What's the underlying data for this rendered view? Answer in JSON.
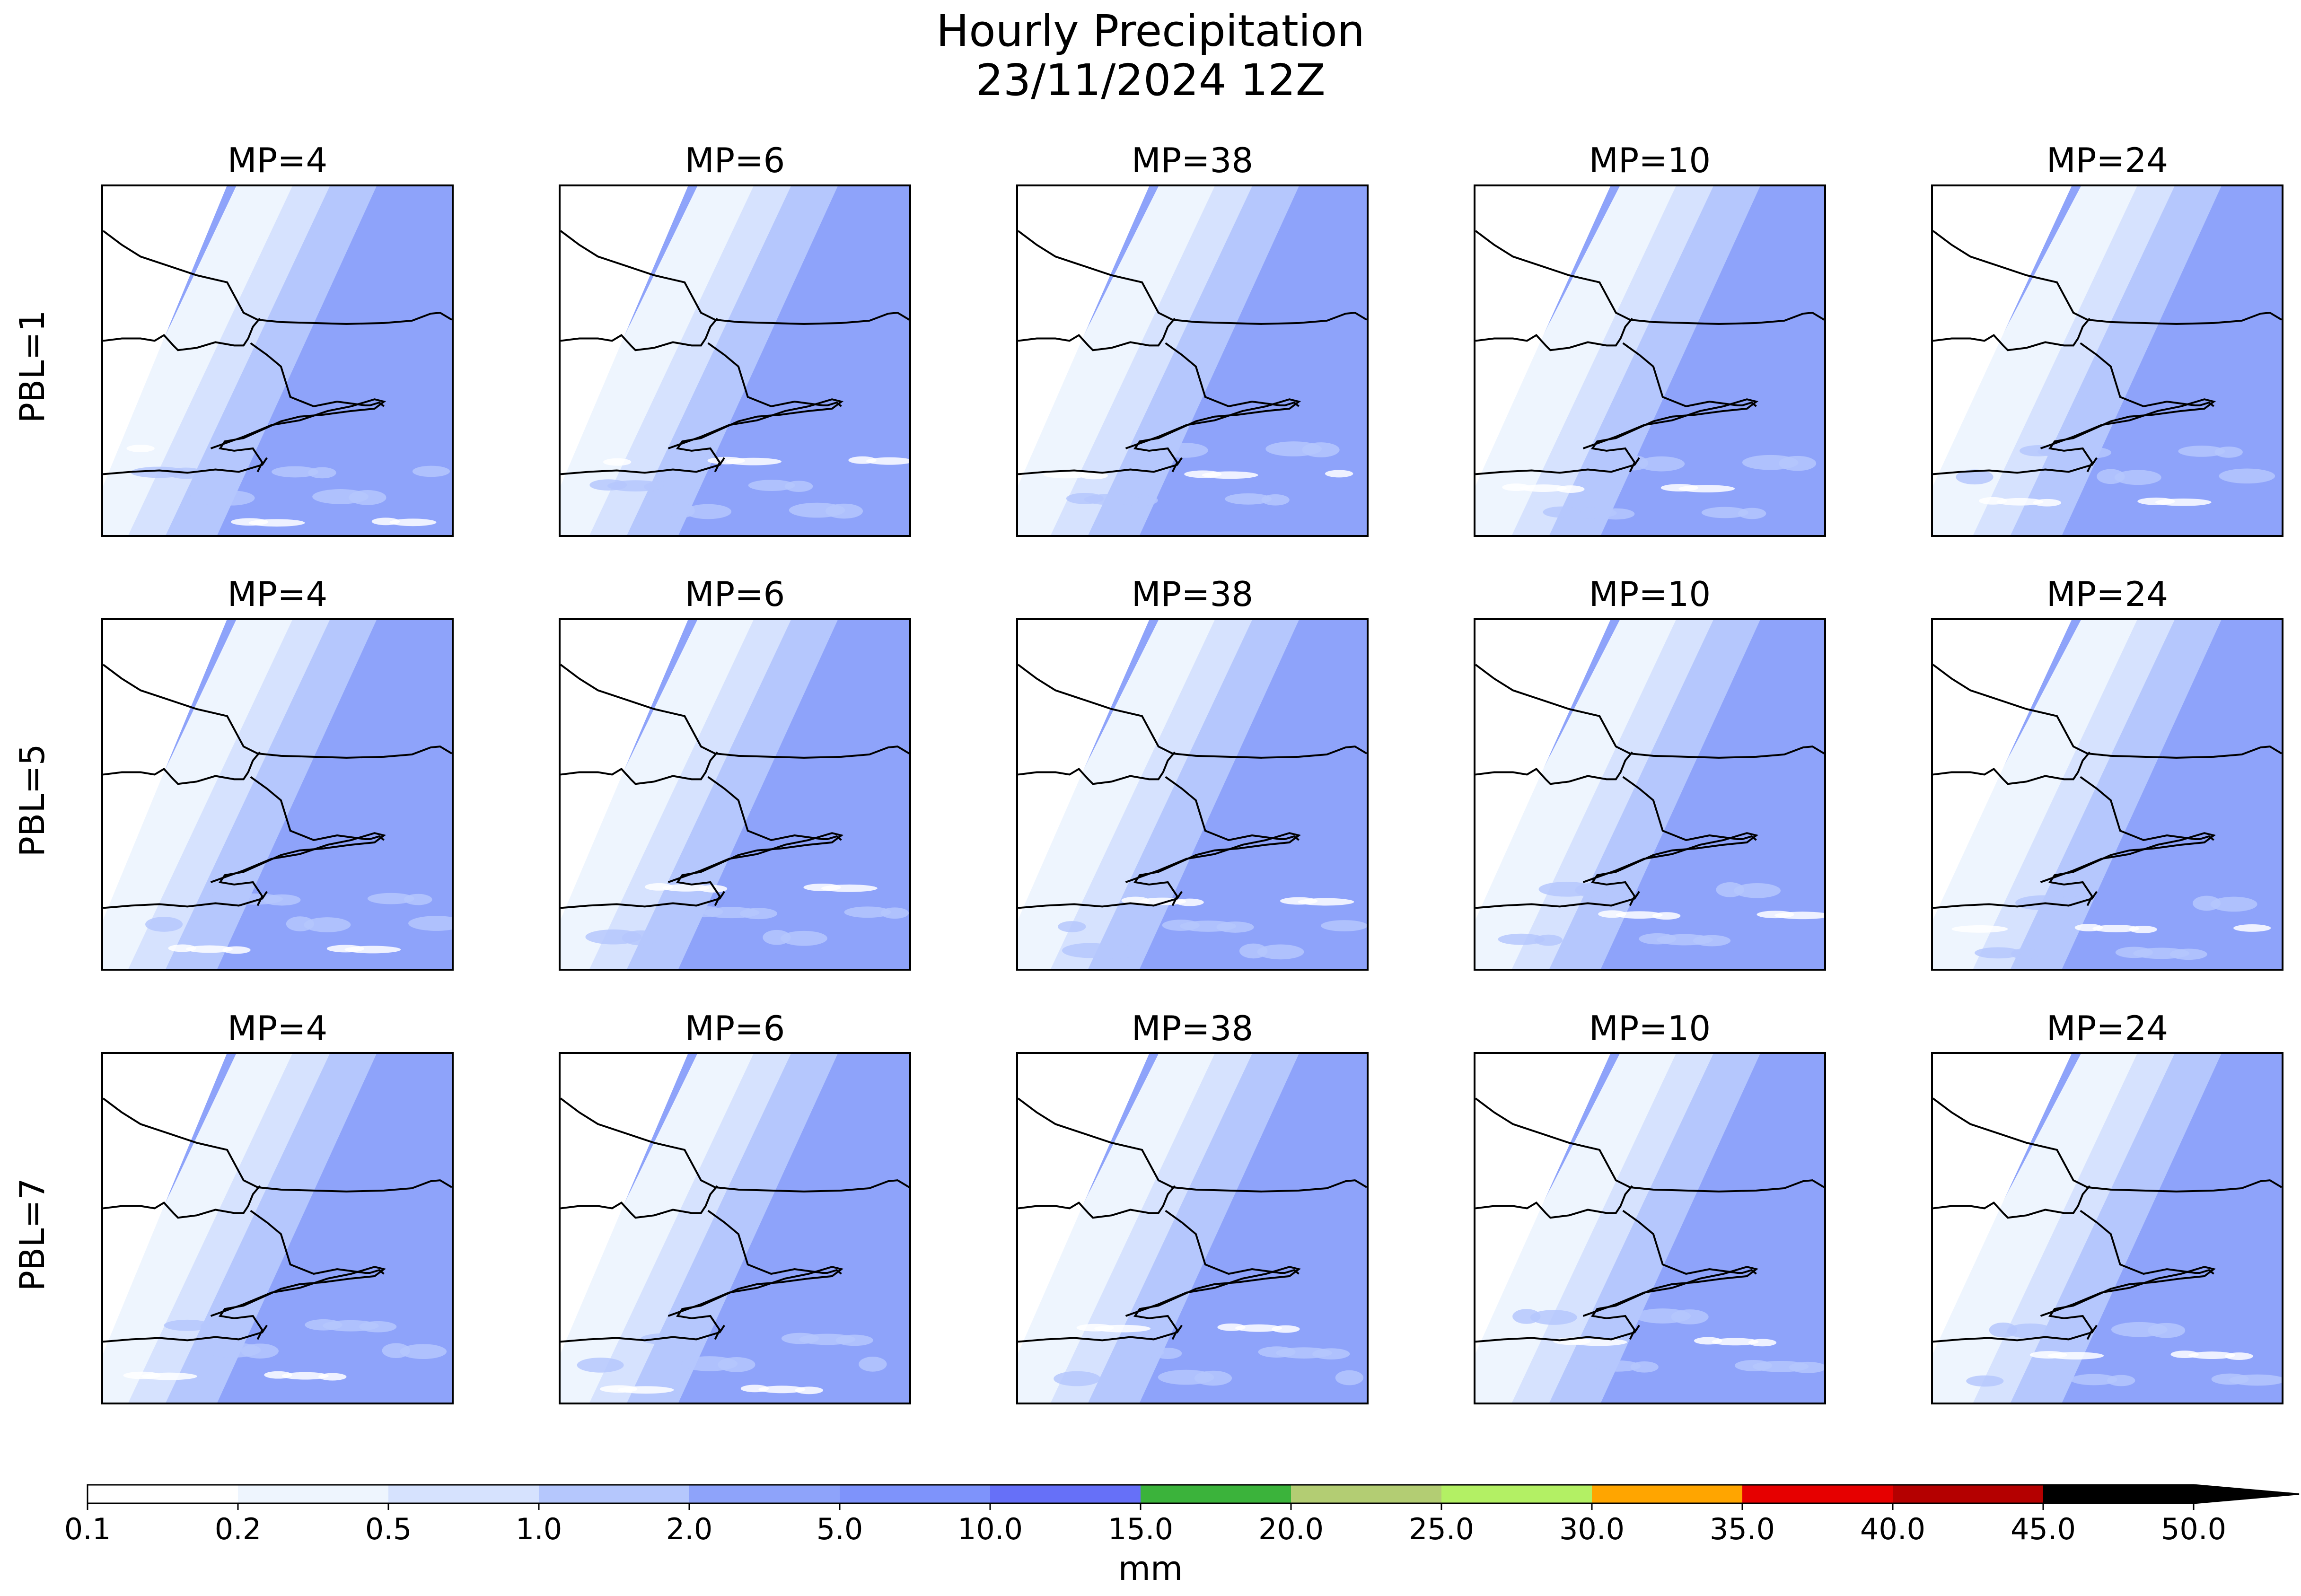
{
  "figure": {
    "title_line1": "Hourly Precipitation",
    "title_line2": "23/11/2024 12Z"
  },
  "rows": [
    {
      "label": "PBL=1"
    },
    {
      "label": "PBL=5"
    },
    {
      "label": "PBL=7"
    }
  ],
  "columns": [
    {
      "title": "MP=4"
    },
    {
      "title": "MP=6"
    },
    {
      "title": "MP=38"
    },
    {
      "title": "MP=10"
    },
    {
      "title": "MP=24"
    }
  ],
  "colorbar": {
    "label": "mm",
    "ticks": [
      "0.1",
      "0.2",
      "0.5",
      "1.0",
      "2.0",
      "5.0",
      "10.0",
      "15.0",
      "20.0",
      "25.0",
      "30.0",
      "35.0",
      "40.0",
      "45.0",
      "50.0"
    ],
    "levels": [
      0.1,
      0.2,
      0.5,
      1.0,
      2.0,
      5.0,
      10.0,
      15.0,
      20.0,
      25.0,
      30.0,
      35.0,
      40.0,
      45.0,
      50.0
    ],
    "colors": [
      "#ffffff",
      "#eef5fe",
      "#d6e2fe",
      "#b5c7fd",
      "#8ea3fa",
      "#7e93fb",
      "#6670f8",
      "#3bb33b",
      "#b3cd73",
      "#b3f064",
      "#ffa500",
      "#e60000",
      "#b40000",
      "#000000"
    ],
    "extend": "max"
  },
  "map": {
    "background_color": "#7e93fb",
    "coastline_color": "#000000"
  }
}
